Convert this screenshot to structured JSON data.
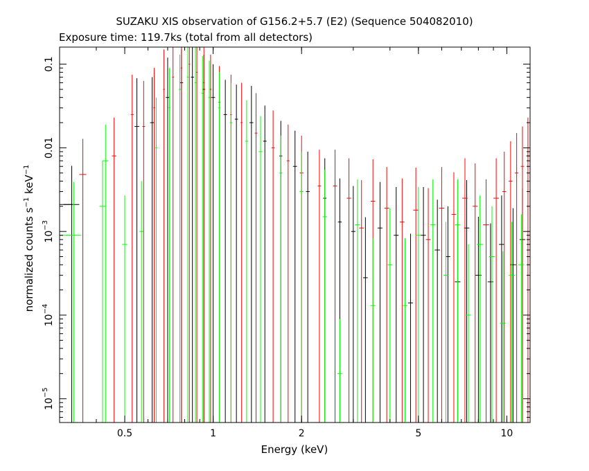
{
  "chart_data": {
    "type": "scatter",
    "title": "SUZAKU XIS observation of G156.2+5.7 (E2) (Sequence 504082010)",
    "subtitle": "Exposure time: 119.7ks (total from all detectors)",
    "xlabel": "Energy (keV)",
    "ylabel": {
      "main": "normalized counts s",
      "exp1": "−1",
      "mid": " keV",
      "exp2": "−1"
    },
    "xscale": "log",
    "yscale": "log",
    "xlim": [
      0.3,
      12
    ],
    "ylim": [
      5.2e-06,
      0.16
    ],
    "x_ticks": [
      {
        "value": 0.5,
        "label": "0.5"
      },
      {
        "value": 1,
        "label": "1"
      },
      {
        "value": 2,
        "label": "2"
      },
      {
        "value": 5,
        "label": "5"
      },
      {
        "value": 10,
        "label": "10"
      }
    ],
    "y_ticks": [
      {
        "value": 0.1,
        "label": "0.1"
      },
      {
        "value": 0.01,
        "label": "0.01"
      },
      {
        "value": 0.001,
        "base": "10",
        "exp": "−3"
      },
      {
        "value": 0.0001,
        "base": "10",
        "exp": "−4"
      },
      {
        "value": 1e-05,
        "base": "10",
        "exp": "−5"
      }
    ],
    "series": [
      {
        "color": "#000000",
        "points": [
          {
            "x": 0.3,
            "dx": 0.03,
            "y": 0.0021,
            "yerr": 0.004
          },
          {
            "x": 0.33,
            "dx": 0.02,
            "y": 0.0021,
            "yerr": 0.004
          },
          {
            "x": 0.55,
            "dx": 0.01,
            "y": 0.018,
            "yerr": 0.05
          },
          {
            "x": 0.62,
            "dx": 0.01,
            "y": 0.02,
            "yerr": 0.05
          },
          {
            "x": 0.7,
            "dx": 0.01,
            "y": 0.04,
            "yerr": 0.08
          },
          {
            "x": 0.78,
            "dx": 0.01,
            "y": 0.06,
            "yerr": 0.09
          },
          {
            "x": 0.85,
            "dx": 0.01,
            "y": 0.07,
            "yerr": 0.09
          },
          {
            "x": 0.93,
            "dx": 0.01,
            "y": 0.05,
            "yerr": 0.08
          },
          {
            "x": 1.0,
            "dx": 0.015,
            "y": 0.04,
            "yerr": 0.06
          },
          {
            "x": 1.1,
            "dx": 0.015,
            "y": 0.025,
            "yerr": 0.04
          },
          {
            "x": 1.2,
            "dx": 0.015,
            "y": 0.022,
            "yerr": 0.035
          },
          {
            "x": 1.35,
            "dx": 0.02,
            "y": 0.02,
            "yerr": 0.035
          },
          {
            "x": 1.5,
            "dx": 0.02,
            "y": 0.012,
            "yerr": 0.02
          },
          {
            "x": 1.7,
            "dx": 0.02,
            "y": 0.008,
            "yerr": 0.013
          },
          {
            "x": 1.9,
            "dx": 0.03,
            "y": 0.006,
            "yerr": 0.01
          },
          {
            "x": 2.1,
            "dx": 0.03,
            "y": 0.003,
            "yerr": 0.006
          },
          {
            "x": 2.4,
            "dx": 0.03,
            "y": 0.0025,
            "yerr": 0.005
          },
          {
            "x": 2.7,
            "dx": 0.04,
            "y": 0.0013,
            "yerr": 0.003
          },
          {
            "x": 3.0,
            "dx": 0.05,
            "y": 0.001,
            "yerr": 0.0025
          },
          {
            "x": 3.3,
            "dx": 0.06,
            "y": 0.00028,
            "yerr": 0.0012
          },
          {
            "x": 3.7,
            "dx": 0.07,
            "y": 0.0011,
            "yerr": 0.0028
          },
          {
            "x": 4.2,
            "dx": 0.08,
            "y": 0.0009,
            "yerr": 0.0025
          },
          {
            "x": 4.7,
            "dx": 0.09,
            "y": 0.00014,
            "yerr": 0.0008
          },
          {
            "x": 5.2,
            "dx": 0.1,
            "y": 0.0009,
            "yerr": 0.0025
          },
          {
            "x": 5.8,
            "dx": 0.12,
            "y": 0.0006,
            "yerr": 0.0018
          },
          {
            "x": 6.3,
            "dx": 0.12,
            "y": 0.0005,
            "yerr": 0.0015
          },
          {
            "x": 6.8,
            "dx": 0.15,
            "y": 0.00025,
            "yerr": 0.001
          },
          {
            "x": 7.3,
            "dx": 0.15,
            "y": 0.0011,
            "yerr": 0.003
          },
          {
            "x": 8.0,
            "dx": 0.2,
            "y": 0.0003,
            "yerr": 0.0012
          },
          {
            "x": 8.8,
            "dx": 0.2,
            "y": 0.00025,
            "yerr": 0.001
          },
          {
            "x": 9.6,
            "dx": 0.2,
            "y": 0.0007,
            "yerr": 0.002
          },
          {
            "x": 10.5,
            "dx": 0.25,
            "y": 0.0004,
            "yerr": 0.0015
          },
          {
            "x": 11.3,
            "dx": 0.25,
            "y": 0.0008,
            "yerr": 0.0025
          }
        ]
      },
      {
        "color": "#ff0000",
        "points": [
          {
            "x": 0.36,
            "dx": 0.01,
            "y": 0.0048,
            "yerr": 0.008
          },
          {
            "x": 0.46,
            "dx": 0.008,
            "y": 0.008,
            "yerr": 0.015
          },
          {
            "x": 0.53,
            "dx": 0.006,
            "y": 0.025,
            "yerr": 0.05
          },
          {
            "x": 0.58,
            "dx": 0.006,
            "y": 0.018,
            "yerr": 0.045
          },
          {
            "x": 0.63,
            "dx": 0.005,
            "y": 0.03,
            "yerr": 0.06
          },
          {
            "x": 0.68,
            "dx": 0.005,
            "y": 0.05,
            "yerr": 0.1
          },
          {
            "x": 0.73,
            "dx": 0.005,
            "y": 0.07,
            "yerr": 0.12
          },
          {
            "x": 0.78,
            "dx": 0.005,
            "y": 0.09,
            "yerr": 0.13
          },
          {
            "x": 0.83,
            "dx": 0.005,
            "y": 0.1,
            "yerr": 0.14
          },
          {
            "x": 0.88,
            "dx": 0.005,
            "y": 0.08,
            "yerr": 0.12
          },
          {
            "x": 0.93,
            "dx": 0.006,
            "y": 0.06,
            "yerr": 0.1
          },
          {
            "x": 0.98,
            "dx": 0.006,
            "y": 0.05,
            "yerr": 0.08
          },
          {
            "x": 1.05,
            "dx": 0.008,
            "y": 0.035,
            "yerr": 0.06
          },
          {
            "x": 1.15,
            "dx": 0.008,
            "y": 0.025,
            "yerr": 0.05
          },
          {
            "x": 1.25,
            "dx": 0.01,
            "y": 0.02,
            "yerr": 0.04
          },
          {
            "x": 1.4,
            "dx": 0.015,
            "y": 0.015,
            "yerr": 0.03
          },
          {
            "x": 1.6,
            "dx": 0.02,
            "y": 0.01,
            "yerr": 0.018
          },
          {
            "x": 1.8,
            "dx": 0.02,
            "y": 0.007,
            "yerr": 0.012
          },
          {
            "x": 2.0,
            "dx": 0.03,
            "y": 0.005,
            "yerr": 0.009
          },
          {
            "x": 2.3,
            "dx": 0.03,
            "y": 0.0035,
            "yerr": 0.006
          },
          {
            "x": 2.6,
            "dx": 0.04,
            "y": 0.0035,
            "yerr": 0.006
          },
          {
            "x": 2.9,
            "dx": 0.05,
            "y": 0.0025,
            "yerr": 0.005
          },
          {
            "x": 3.2,
            "dx": 0.06,
            "y": 0.0011,
            "yerr": 0.003
          },
          {
            "x": 3.5,
            "dx": 0.06,
            "y": 0.0023,
            "yerr": 0.005
          },
          {
            "x": 3.9,
            "dx": 0.07,
            "y": 0.0019,
            "yerr": 0.004
          },
          {
            "x": 4.4,
            "dx": 0.08,
            "y": 0.0013,
            "yerr": 0.003
          },
          {
            "x": 4.9,
            "dx": 0.1,
            "y": 0.0018,
            "yerr": 0.004
          },
          {
            "x": 5.4,
            "dx": 0.1,
            "y": 0.0008,
            "yerr": 0.0025
          },
          {
            "x": 6.0,
            "dx": 0.12,
            "y": 0.0019,
            "yerr": 0.004
          },
          {
            "x": 6.6,
            "dx": 0.12,
            "y": 0.0016,
            "yerr": 0.0035
          },
          {
            "x": 7.2,
            "dx": 0.15,
            "y": 0.0025,
            "yerr": 0.005
          },
          {
            "x": 7.8,
            "dx": 0.15,
            "y": 0.002,
            "yerr": 0.0045
          },
          {
            "x": 8.5,
            "dx": 0.2,
            "y": 0.0012,
            "yerr": 0.003
          },
          {
            "x": 9.2,
            "dx": 0.2,
            "y": 0.0025,
            "yerr": 0.005
          },
          {
            "x": 9.8,
            "dx": 0.15,
            "y": 0.003,
            "yerr": 0.006
          },
          {
            "x": 10.3,
            "dx": 0.15,
            "y": 0.004,
            "yerr": 0.008
          },
          {
            "x": 10.8,
            "dx": 0.15,
            "y": 0.005,
            "yerr": 0.01
          },
          {
            "x": 11.3,
            "dx": 0.15,
            "y": 0.006,
            "yerr": 0.012
          },
          {
            "x": 11.8,
            "dx": 0.15,
            "y": 0.008,
            "yerr": 0.015
          }
        ]
      },
      {
        "color": "#00ff00",
        "points": [
          {
            "x": 0.3,
            "dx": 0.025,
            "y": 0.0009,
            "yerr": 0.003
          },
          {
            "x": 0.335,
            "dx": 0.02,
            "y": 0.0009,
            "yerr": 0.003
          },
          {
            "x": 0.42,
            "dx": 0.01,
            "y": 0.002,
            "yerr": 0.005
          },
          {
            "x": 0.43,
            "dx": 0.01,
            "y": 0.007,
            "yerr": 0.012
          },
          {
            "x": 0.5,
            "dx": 0.01,
            "y": 0.0007,
            "yerr": 0.002
          },
          {
            "x": 0.57,
            "dx": 0.008,
            "y": 0.001,
            "yerr": 0.003
          },
          {
            "x": 0.64,
            "dx": 0.006,
            "y": 0.01,
            "yerr": 0.03
          },
          {
            "x": 0.71,
            "dx": 0.006,
            "y": 0.03,
            "yerr": 0.06
          },
          {
            "x": 0.77,
            "dx": 0.006,
            "y": 0.05,
            "yerr": 0.08
          },
          {
            "x": 0.82,
            "dx": 0.006,
            "y": 0.07,
            "yerr": 0.1
          },
          {
            "x": 0.87,
            "dx": 0.006,
            "y": 0.06,
            "yerr": 0.1
          },
          {
            "x": 0.92,
            "dx": 0.007,
            "y": 0.045,
            "yerr": 0.08
          },
          {
            "x": 0.97,
            "dx": 0.007,
            "y": 0.04,
            "yerr": 0.07
          },
          {
            "x": 1.05,
            "dx": 0.01,
            "y": 0.03,
            "yerr": 0.05
          },
          {
            "x": 1.15,
            "dx": 0.01,
            "y": 0.02,
            "yerr": 0.04
          },
          {
            "x": 1.3,
            "dx": 0.015,
            "y": 0.012,
            "yerr": 0.025
          },
          {
            "x": 1.45,
            "dx": 0.02,
            "y": 0.009,
            "yerr": 0.015
          },
          {
            "x": 1.7,
            "dx": 0.02,
            "y": 0.005,
            "yerr": 0.009
          },
          {
            "x": 2.0,
            "dx": 0.03,
            "y": 0.003,
            "yerr": 0.006
          },
          {
            "x": 2.4,
            "dx": 0.04,
            "y": 0.0015,
            "yerr": 0.004
          },
          {
            "x": 2.7,
            "dx": 0.05,
            "y": 2e-05,
            "yerr": 7e-05
          },
          {
            "x": 3.1,
            "dx": 0.06,
            "y": 0.0012,
            "yerr": 0.003
          },
          {
            "x": 3.5,
            "dx": 0.07,
            "y": 0.00013,
            "yerr": 0.0007
          },
          {
            "x": 4.0,
            "dx": 0.08,
            "y": 0.0004,
            "yerr": 0.0015
          },
          {
            "x": 4.5,
            "dx": 0.09,
            "y": 0.00013,
            "yerr": 0.0007
          },
          {
            "x": 5.0,
            "dx": 0.1,
            "y": 0.0009,
            "yerr": 0.0025
          },
          {
            "x": 5.6,
            "dx": 0.12,
            "y": 0.0012,
            "yerr": 0.003
          },
          {
            "x": 6.2,
            "dx": 0.12,
            "y": 0.0003,
            "yerr": 0.001
          },
          {
            "x": 6.8,
            "dx": 0.15,
            "y": 0.0012,
            "yerr": 0.003
          },
          {
            "x": 7.4,
            "dx": 0.15,
            "y": 0.0001,
            "yerr": 0.0006
          },
          {
            "x": 8.1,
            "dx": 0.2,
            "y": 0.0007,
            "yerr": 0.002
          },
          {
            "x": 8.9,
            "dx": 0.2,
            "y": 0.0005,
            "yerr": 0.0015
          },
          {
            "x": 9.7,
            "dx": 0.2,
            "y": 8e-05,
            "yerr": 0.0005
          },
          {
            "x": 10.4,
            "dx": 0.25,
            "y": 0.0003,
            "yerr": 0.001
          },
          {
            "x": 11.2,
            "dx": 0.25,
            "y": 0.0004,
            "yerr": 0.0012
          }
        ]
      }
    ]
  }
}
